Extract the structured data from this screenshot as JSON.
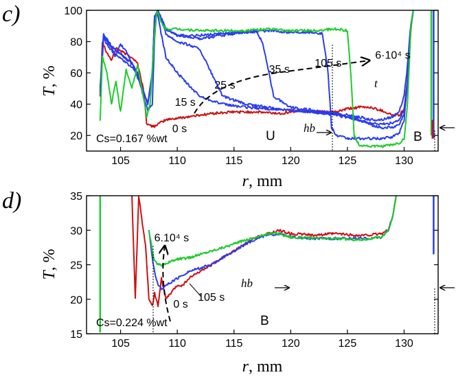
{
  "colors": {
    "red": "#cc1111",
    "blue": "#2a3cf0",
    "green": "#1ccc2a"
  },
  "chart_data": [
    {
      "type": "line",
      "panel": "c)",
      "xlabel": "r, mm",
      "ylabel": "T, %",
      "xlim": [
        102,
        133
      ],
      "ylim": [
        10,
        100
      ],
      "xticks": [
        105,
        110,
        115,
        120,
        125,
        130
      ],
      "yticks": [
        20,
        40,
        60,
        80,
        100
      ],
      "x_tick_labels": [
        "105",
        "110",
        "115",
        "120",
        "125",
        "130"
      ],
      "y_tick_labels": [
        "20",
        "40",
        "60",
        "80",
        "100"
      ],
      "series": [
        {
          "name": "0 s",
          "color": "red",
          "x": [
            103.2,
            103.4,
            103.8,
            104.2,
            104.6,
            105.0,
            105.5,
            106.0,
            106.5,
            107.0,
            107.3,
            107.6,
            108.0,
            108.5,
            109.0,
            110.0,
            111.0,
            112.0,
            113.0,
            115.0,
            117.0,
            119.0,
            121.0,
            123.0,
            124.0,
            125.0,
            126.0,
            127.0,
            128.0,
            129.0,
            129.6,
            130.0,
            130.3,
            130.6,
            130.8
          ],
          "y": [
            45,
            80,
            73,
            68,
            76,
            74,
            72,
            70,
            66,
            50,
            28,
            26,
            26,
            28,
            30,
            31,
            32,
            33,
            34,
            35,
            35,
            34,
            36,
            35,
            35,
            37,
            38,
            38,
            36,
            33,
            33,
            37,
            55,
            88,
            100
          ]
        },
        {
          "name": "15 s",
          "color": "blue",
          "x": [
            103.2,
            103.5,
            104.0,
            104.5,
            105.0,
            105.5,
            106.0,
            106.5,
            107.0,
            107.4,
            107.8,
            108.0,
            108.2,
            108.5,
            109.0,
            110.0,
            111.0,
            112.0,
            114.0,
            116.0,
            118.0,
            120.0,
            122.0,
            124.0,
            126.0,
            127.0,
            128.0,
            129.0,
            129.6,
            130.0,
            130.3,
            130.6,
            130.8
          ],
          "y": [
            50,
            85,
            80,
            70,
            78,
            74,
            66,
            60,
            45,
            36,
            40,
            82,
            100,
            88,
            70,
            60,
            52,
            45,
            40,
            38,
            37,
            36,
            35,
            34,
            32,
            30,
            30,
            32,
            36,
            45,
            65,
            92,
            100
          ]
        },
        {
          "name": "25 s",
          "color": "blue",
          "x": [
            103.2,
            103.5,
            104.0,
            104.5,
            105.0,
            105.5,
            106.0,
            106.5,
            107.0,
            107.4,
            107.8,
            108.0,
            108.3,
            109.0,
            110.0,
            111.0,
            112.0,
            113.0,
            114.0,
            116.0,
            118.0,
            120.0,
            122.0,
            124.0,
            126.0,
            127.0,
            128.0,
            129.0,
            129.6,
            130.0,
            130.3,
            130.6,
            130.8
          ],
          "y": [
            45,
            82,
            76,
            72,
            70,
            66,
            64,
            60,
            48,
            40,
            60,
            95,
            100,
            85,
            80,
            78,
            75,
            60,
            45,
            40,
            38,
            36,
            35,
            33,
            30,
            28,
            27,
            28,
            30,
            36,
            55,
            90,
            100
          ]
        },
        {
          "name": "35 s",
          "color": "blue",
          "x": [
            103.2,
            103.5,
            104.0,
            105.0,
            106.0,
            106.5,
            107.0,
            107.4,
            107.8,
            108.0,
            108.3,
            109.0,
            110.0,
            112.0,
            114.0,
            115.0,
            116.0,
            117.0,
            117.5,
            118.5,
            120.0,
            122.0,
            124.0,
            126.0,
            127.0,
            128.0,
            129.0,
            129.6,
            130.0,
            130.3,
            130.6,
            130.8
          ],
          "y": [
            48,
            84,
            78,
            72,
            66,
            60,
            48,
            40,
            60,
            96,
            100,
            88,
            84,
            82,
            84,
            85,
            86,
            86,
            80,
            45,
            38,
            36,
            34,
            30,
            27,
            25,
            25,
            27,
            34,
            55,
            90,
            100
          ]
        },
        {
          "name": "105 s",
          "color": "blue",
          "x": [
            103.2,
            103.5,
            104.0,
            105.0,
            106.0,
            107.0,
            107.4,
            107.8,
            108.0,
            108.3,
            109.0,
            110.0,
            112.0,
            114.0,
            116.0,
            118.0,
            120.0,
            122.0,
            122.8,
            123.3,
            123.6,
            124.0,
            125.0,
            126.0,
            127.0,
            128.0,
            129.0,
            129.6,
            130.0,
            130.3,
            130.6,
            130.8
          ],
          "y": [
            48,
            84,
            78,
            72,
            66,
            48,
            40,
            60,
            96,
            100,
            88,
            84,
            84,
            85,
            86,
            87,
            86,
            86,
            85,
            60,
            25,
            20,
            18,
            18,
            18,
            18,
            19,
            22,
            30,
            55,
            90,
            100
          ]
        },
        {
          "name": "6·10⁴ s",
          "color": "green",
          "x": [
            103.2,
            103.4,
            103.8,
            104.2,
            104.6,
            105.0,
            105.5,
            106.0,
            106.5,
            107.0,
            107.3,
            107.6,
            108.0,
            108.2,
            108.6,
            109.0,
            110.0,
            112.0,
            114.0,
            116.0,
            118.0,
            120.0,
            122.0,
            124.0,
            125.0,
            125.3,
            125.6,
            126.0,
            127.0,
            128.0,
            129.0,
            129.6,
            130.0,
            130.3,
            130.6,
            130.8
          ],
          "y": [
            30,
            70,
            60,
            40,
            55,
            35,
            62,
            50,
            65,
            45,
            32,
            40,
            85,
            100,
            92,
            88,
            88,
            87,
            87,
            87,
            88,
            87,
            87,
            88,
            87,
            60,
            20,
            14,
            13,
            13,
            14,
            15,
            18,
            40,
            90,
            100
          ]
        }
      ],
      "edge_segments": [
        {
          "color": "blue",
          "x": 132.6,
          "y": [
            18,
            100
          ]
        },
        {
          "color": "green",
          "x": 132.4,
          "y": [
            20,
            100
          ]
        },
        {
          "color": "red",
          "x": 132.5,
          "y": [
            18,
            30
          ]
        }
      ],
      "annotations": {
        "time_labels": [
          {
            "text": "0 s",
            "x": 110.2,
            "y": 22
          },
          {
            "text": "15 s",
            "x": 110.7,
            "y": 39
          },
          {
            "text": "25 s",
            "x": 114.2,
            "y": 50
          },
          {
            "text": "35 s",
            "x": 119.0,
            "y": 60
          },
          {
            "text": "105 s",
            "x": 123.3,
            "y": 64
          },
          {
            "text": "6·10⁴ s",
            "x": 129.0,
            "y": 69
          }
        ],
        "t_arrow_label": "t",
        "concentration": "Cs=0.167 %wt",
        "region_u": "U",
        "region_b": "B",
        "hb_label": "hb"
      }
    },
    {
      "type": "line",
      "panel": "d)",
      "xlabel": "r, mm",
      "ylabel": "T, %",
      "xlim": [
        102,
        133
      ],
      "ylim": [
        15,
        35
      ],
      "xticks": [
        105,
        110,
        115,
        120,
        125,
        130
      ],
      "yticks": [
        15,
        20,
        25,
        30,
        35
      ],
      "x_tick_labels": [
        "105",
        "110",
        "115",
        "120",
        "125",
        "130"
      ],
      "y_tick_labels": [
        "15",
        "20",
        "25",
        "30",
        "35"
      ],
      "series": [
        {
          "name": "0 s",
          "color": "red",
          "x": [
            106.0,
            106.3,
            106.6,
            107.0,
            107.2,
            107.5,
            107.8,
            108.0,
            108.3,
            108.6,
            109.0,
            109.5,
            110.0,
            110.5,
            111.0,
            112.0,
            113.0,
            114.0,
            115.0,
            116.0,
            117.0,
            118.0,
            119.0,
            120.0,
            122.0,
            124.0,
            126.0,
            127.0,
            128.0,
            128.6,
            129.0,
            129.3
          ],
          "y": [
            35,
            20,
            35,
            30,
            28,
            20,
            19,
            21,
            19,
            23,
            20,
            21,
            22,
            22,
            23,
            24,
            25,
            26,
            27,
            28,
            29,
            29.5,
            30,
            29.5,
            29.3,
            29.5,
            29.2,
            29.3,
            29.5,
            30,
            32,
            35
          ]
        },
        {
          "name": "105 s",
          "color": "blue",
          "x": [
            107.5,
            107.8,
            108.0,
            108.3,
            108.6,
            109.0,
            109.5,
            110.0,
            111.0,
            112.0,
            113.0,
            114.0,
            115.0,
            116.0,
            117.0,
            118.0,
            119.0,
            120.0,
            122.0,
            124.0,
            126.0,
            127.0,
            128.0,
            128.6,
            129.0,
            129.3
          ],
          "y": [
            30,
            26,
            24,
            22,
            21.5,
            22,
            22.5,
            23,
            24,
            24.5,
            25,
            26,
            27,
            28,
            28.8,
            29.3,
            29.5,
            29.0,
            28.8,
            28.8,
            28.8,
            28.8,
            29.0,
            30,
            32,
            35
          ]
        },
        {
          "name": "6·10⁴ s",
          "color": "green",
          "x": [
            107.5,
            107.8,
            108.0,
            108.3,
            108.6,
            109.0,
            109.5,
            110.0,
            111.0,
            112.0,
            113.0,
            114.0,
            115.0,
            116.0,
            117.0,
            118.0,
            119.0,
            120.0,
            122.0,
            124.0,
            126.0,
            127.0,
            128.0,
            128.6,
            129.0,
            129.3
          ],
          "y": [
            30,
            27,
            25.5,
            25,
            25,
            25.2,
            25.5,
            25.8,
            26,
            26.5,
            27,
            27.5,
            28,
            28.6,
            29,
            29.5,
            29.5,
            29.0,
            28.8,
            28.8,
            28.6,
            28.8,
            29.0,
            30,
            32,
            35
          ]
        }
      ],
      "edge_segments": [
        {
          "color": "green",
          "x": 103.2,
          "y": [
            15.2,
            35
          ]
        },
        {
          "color": "blue",
          "x": 132.6,
          "y": [
            26.5,
            35
          ]
        }
      ],
      "annotations": {
        "time_labels": [
          {
            "text": "6.10⁴ s",
            "x": 109.5,
            "y": 28.4
          },
          {
            "text": "105 s",
            "x": 113.0,
            "y": 19.8
          },
          {
            "text": "0 s",
            "x": 110.3,
            "y": 18.8
          }
        ],
        "concentration": "Cs=0.224 %wt",
        "region_b": "B",
        "hb_label": "hb"
      }
    }
  ]
}
